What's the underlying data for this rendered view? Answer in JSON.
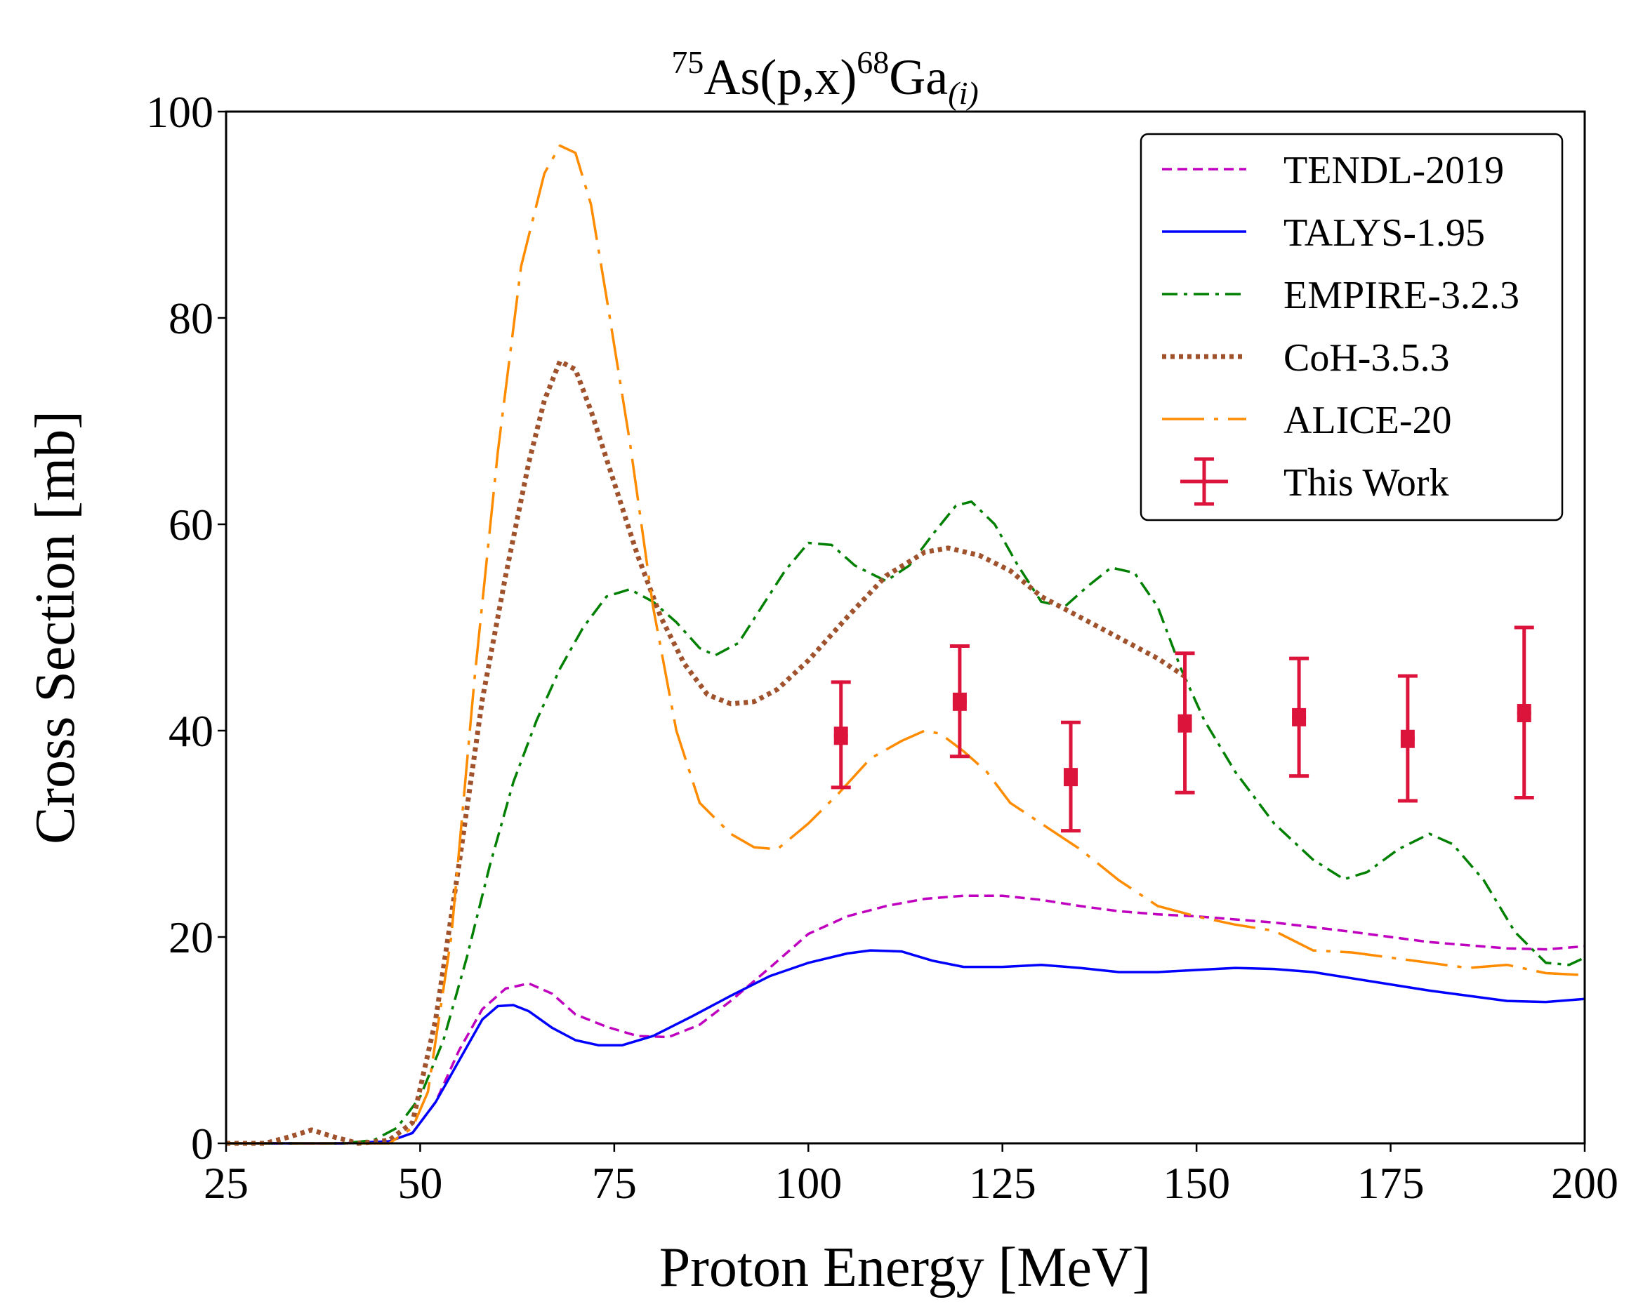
{
  "chart_data": {
    "type": "line",
    "title": {
      "mass_number_target": "75",
      "target": "As(p,x)",
      "mass_number_product": "68",
      "product": "Ga",
      "subscript": "(i)"
    },
    "xlabel": "Proton Energy [MeV]",
    "ylabel": "Cross Section [mb]",
    "xlim": [
      25,
      200
    ],
    "ylim": [
      0,
      100
    ],
    "xticks": [
      25,
      50,
      75,
      100,
      125,
      150,
      175,
      200
    ],
    "yticks": [
      0,
      20,
      40,
      60,
      80,
      100
    ],
    "grid": false,
    "legend_position": "top-right",
    "series": [
      {
        "name": "TENDL-2019",
        "color": "#BF00BF",
        "style": "dashed",
        "points": [
          [
            25,
            0
          ],
          [
            40,
            0
          ],
          [
            46,
            0.2
          ],
          [
            49,
            1.0
          ],
          [
            52,
            4
          ],
          [
            55,
            9
          ],
          [
            58,
            13
          ],
          [
            61,
            15
          ],
          [
            64,
            15.5
          ],
          [
            67,
            14.5
          ],
          [
            70,
            12.5
          ],
          [
            74,
            11.3
          ],
          [
            78,
            10.4
          ],
          [
            82,
            10.3
          ],
          [
            86,
            11.5
          ],
          [
            90,
            13.8
          ],
          [
            95,
            17
          ],
          [
            100,
            20.3
          ],
          [
            105,
            22
          ],
          [
            110,
            23
          ],
          [
            115,
            23.7
          ],
          [
            120,
            24.0
          ],
          [
            125,
            24.0
          ],
          [
            130,
            23.6
          ],
          [
            135,
            23.0
          ],
          [
            140,
            22.5
          ],
          [
            145,
            22.2
          ],
          [
            150,
            22.0
          ],
          [
            160,
            21.4
          ],
          [
            170,
            20.5
          ],
          [
            180,
            19.5
          ],
          [
            190,
            18.9
          ],
          [
            195,
            18.8
          ],
          [
            200,
            19.1
          ]
        ]
      },
      {
        "name": "TALYS-1.95",
        "color": "#0000FF",
        "style": "solid",
        "points": [
          [
            25,
            0
          ],
          [
            40,
            0
          ],
          [
            46,
            0.2
          ],
          [
            49,
            1.0
          ],
          [
            52,
            4
          ],
          [
            55,
            8
          ],
          [
            58,
            12
          ],
          [
            60,
            13.3
          ],
          [
            62,
            13.4
          ],
          [
            64,
            12.8
          ],
          [
            67,
            11.2
          ],
          [
            70,
            10.0
          ],
          [
            73,
            9.5
          ],
          [
            76,
            9.5
          ],
          [
            80,
            10.4
          ],
          [
            85,
            12.3
          ],
          [
            90,
            14.3
          ],
          [
            95,
            16.2
          ],
          [
            100,
            17.5
          ],
          [
            105,
            18.4
          ],
          [
            108,
            18.7
          ],
          [
            112,
            18.6
          ],
          [
            116,
            17.7
          ],
          [
            120,
            17.1
          ],
          [
            125,
            17.1
          ],
          [
            130,
            17.3
          ],
          [
            135,
            17.0
          ],
          [
            140,
            16.6
          ],
          [
            145,
            16.6
          ],
          [
            150,
            16.8
          ],
          [
            155,
            17.0
          ],
          [
            160,
            16.9
          ],
          [
            165,
            16.6
          ],
          [
            170,
            16.0
          ],
          [
            180,
            14.8
          ],
          [
            190,
            13.8
          ],
          [
            195,
            13.7
          ],
          [
            200,
            14.0
          ]
        ]
      },
      {
        "name": "EMPIRE-3.2.3",
        "color": "#008000",
        "style": "dashdot",
        "points": [
          [
            25,
            0
          ],
          [
            40,
            0
          ],
          [
            44,
            0.3
          ],
          [
            47,
            1.5
          ],
          [
            50,
            4.5
          ],
          [
            53,
            10
          ],
          [
            56,
            18
          ],
          [
            59,
            27
          ],
          [
            62,
            35
          ],
          [
            65,
            41
          ],
          [
            68,
            46
          ],
          [
            71,
            50
          ],
          [
            74,
            53
          ],
          [
            77,
            53.7
          ],
          [
            80,
            52.5
          ],
          [
            83,
            50.5
          ],
          [
            86,
            48
          ],
          [
            88,
            47.3
          ],
          [
            91,
            48.5
          ],
          [
            94,
            52
          ],
          [
            97,
            55.5
          ],
          [
            100,
            58.2
          ],
          [
            103,
            58
          ],
          [
            106,
            56
          ],
          [
            110,
            54.5
          ],
          [
            113,
            56
          ],
          [
            116,
            59
          ],
          [
            119,
            61.8
          ],
          [
            121,
            62.2
          ],
          [
            124,
            60
          ],
          [
            127,
            56
          ],
          [
            130,
            52.5
          ],
          [
            133,
            52
          ],
          [
            136,
            54
          ],
          [
            139,
            55.8
          ],
          [
            142,
            55.3
          ],
          [
            145,
            52
          ],
          [
            148,
            46
          ],
          [
            151,
            41
          ],
          [
            155,
            36
          ],
          [
            160,
            31
          ],
          [
            165,
            27.5
          ],
          [
            169,
            25.6
          ],
          [
            172,
            26.3
          ],
          [
            176,
            28.5
          ],
          [
            180,
            30
          ],
          [
            183,
            29
          ],
          [
            187,
            25.5
          ],
          [
            191,
            20.5
          ],
          [
            195,
            17.5
          ],
          [
            198,
            17.3
          ],
          [
            200,
            18.0
          ]
        ]
      },
      {
        "name": "CoH-3.5.3",
        "color": "#A0522D",
        "style": "dotted",
        "points": [
          [
            25,
            0
          ],
          [
            30,
            0
          ],
          [
            33,
            0.6
          ],
          [
            36,
            1.3
          ],
          [
            39,
            0.6
          ],
          [
            42,
            0
          ],
          [
            46,
            0.3
          ],
          [
            49,
            2
          ],
          [
            52,
            12
          ],
          [
            55,
            27
          ],
          [
            58,
            43
          ],
          [
            61,
            55
          ],
          [
            64,
            66
          ],
          [
            66,
            72
          ],
          [
            68,
            75.8
          ],
          [
            70,
            75
          ],
          [
            72,
            71
          ],
          [
            75,
            64
          ],
          [
            78,
            57
          ],
          [
            81,
            51
          ],
          [
            84,
            46.5
          ],
          [
            87,
            43.5
          ],
          [
            90,
            42.6
          ],
          [
            93,
            42.8
          ],
          [
            96,
            44
          ],
          [
            100,
            46.8
          ],
          [
            105,
            51
          ],
          [
            110,
            55
          ],
          [
            115,
            57.3
          ],
          [
            118,
            57.7
          ],
          [
            122,
            57
          ],
          [
            126,
            55.5
          ],
          [
            130,
            53
          ],
          [
            135,
            51
          ],
          [
            140,
            49
          ],
          [
            145,
            47
          ],
          [
            149,
            45
          ]
        ]
      },
      {
        "name": "ALICE-20",
        "color": "#FF8C00",
        "style": "longdashdot",
        "points": [
          [
            25,
            0
          ],
          [
            46,
            0
          ],
          [
            49,
            1.5
          ],
          [
            51,
            5
          ],
          [
            54,
            20
          ],
          [
            57,
            45
          ],
          [
            60,
            67
          ],
          [
            63,
            85
          ],
          [
            66,
            94
          ],
          [
            68,
            96.7
          ],
          [
            70,
            96
          ],
          [
            72,
            91
          ],
          [
            74,
            82
          ],
          [
            77,
            68
          ],
          [
            80,
            52
          ],
          [
            83,
            40
          ],
          [
            86,
            33
          ],
          [
            90,
            30
          ],
          [
            93,
            28.7
          ],
          [
            96,
            28.5
          ],
          [
            100,
            31
          ],
          [
            104,
            34
          ],
          [
            108,
            37.3
          ],
          [
            112,
            39
          ],
          [
            115,
            40
          ],
          [
            117,
            39.7
          ],
          [
            120,
            38
          ],
          [
            123,
            36
          ],
          [
            126,
            33
          ],
          [
            130,
            31
          ],
          [
            135,
            28.5
          ],
          [
            140,
            25.5
          ],
          [
            145,
            23
          ],
          [
            150,
            22
          ],
          [
            155,
            21.2
          ],
          [
            160,
            20.6
          ],
          [
            165,
            18.7
          ],
          [
            170,
            18.5
          ],
          [
            175,
            18.0
          ],
          [
            180,
            17.5
          ],
          [
            185,
            17.0
          ],
          [
            190,
            17.3
          ],
          [
            195,
            16.5
          ],
          [
            200,
            16.3
          ]
        ]
      }
    ],
    "measurements": {
      "name": "This Work",
      "color": "#DC143C",
      "points": [
        {
          "x": 104.2,
          "y": 39.5,
          "yerr_low": 34.5,
          "yerr_high": 44.7,
          "xerr": 0.9
        },
        {
          "x": 119.5,
          "y": 42.8,
          "yerr_low": 37.5,
          "yerr_high": 48.2,
          "xerr": 0.9
        },
        {
          "x": 133.8,
          "y": 35.5,
          "yerr_low": 30.3,
          "yerr_high": 40.8,
          "xerr": 0.9
        },
        {
          "x": 148.5,
          "y": 40.7,
          "yerr_low": 34.0,
          "yerr_high": 47.5,
          "xerr": 0.9
        },
        {
          "x": 163.2,
          "y": 41.3,
          "yerr_low": 35.6,
          "yerr_high": 47.0,
          "xerr": 0.9
        },
        {
          "x": 177.2,
          "y": 39.2,
          "yerr_low": 33.2,
          "yerr_high": 45.3,
          "xerr": 0.9
        },
        {
          "x": 192.2,
          "y": 41.7,
          "yerr_low": 33.5,
          "yerr_high": 50.0,
          "xerr": 0.9
        }
      ]
    }
  }
}
